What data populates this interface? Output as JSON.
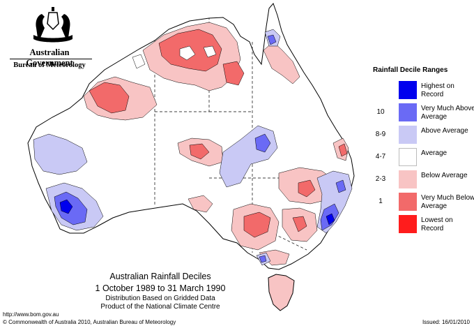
{
  "header": {
    "government": "Australian Government",
    "bureau": "Bureau of Meteorology",
    "crest": "coat-of-arms-icon"
  },
  "legend": {
    "title": "Rainfall Decile Ranges",
    "items": [
      {
        "range": "",
        "label": "Highest on Record",
        "color": "#0000ee"
      },
      {
        "range": "10",
        "label": "Very Much Above Average",
        "color": "#6a6af5"
      },
      {
        "range": "8-9",
        "label": "Above Average",
        "color": "#c9c9f5"
      },
      {
        "range": "4-7",
        "label": "Average",
        "color": "#ffffff"
      },
      {
        "range": "2-3",
        "label": "Below Average",
        "color": "#f8c4c4"
      },
      {
        "range": "1",
        "label": "Very Much Below Average",
        "color": "#f26a6a"
      },
      {
        "range": "",
        "label": "Lowest on Record",
        "color": "#ff1c1c"
      }
    ]
  },
  "caption": {
    "title": "Australian Rainfall Deciles",
    "period": "1 October 1989 to 31 March 1990",
    "basis": "Distribution Based on Gridded Data",
    "product": "Product of the National Climate Centre"
  },
  "footer": {
    "url": "http://www.bom.gov.au",
    "copyright": "© Commonwealth of Australia 2010, Australian Bureau of Meteorology",
    "issued": "Issued: 16/01/2010"
  }
}
